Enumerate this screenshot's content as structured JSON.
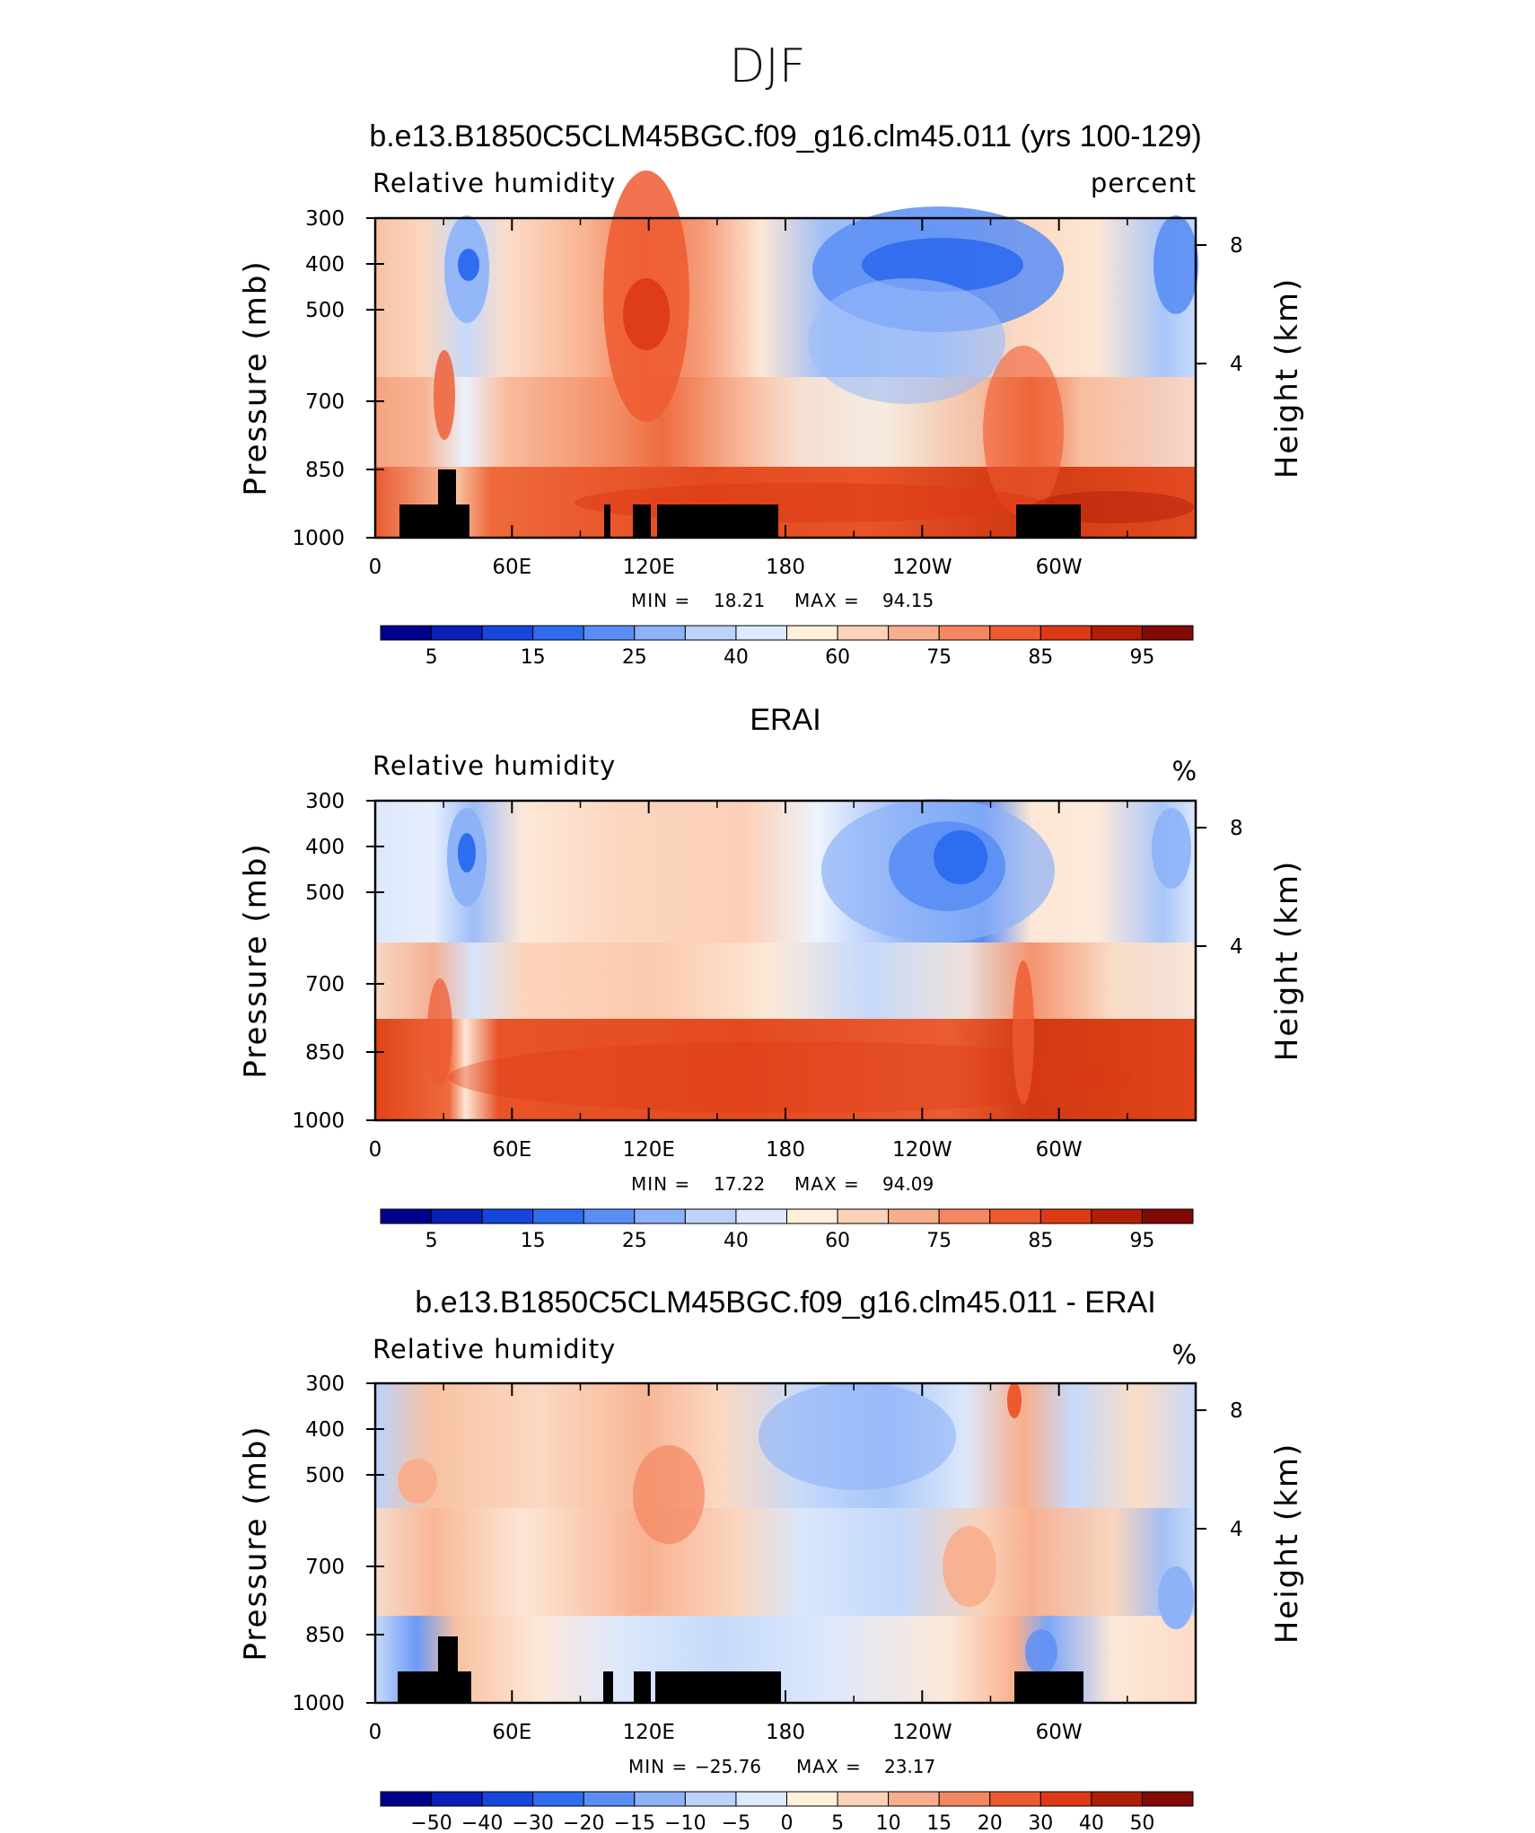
{
  "figure": {
    "title": "DJF"
  },
  "chart_data": [
    {
      "type": "heatmap",
      "title": "b.e13.B1850C5CLM45BGC.f09_g16.clm45.011 (yrs 100-129)",
      "variable": "Relative humidity",
      "units": "percent",
      "ylabel": "Pressure (mb)",
      "y2label": "Height (km)",
      "x_ticks": [
        "0",
        "60E",
        "120E",
        "180",
        "120W",
        "60W"
      ],
      "y_ticks": [
        "300",
        "400",
        "500",
        "700",
        "850",
        "1000"
      ],
      "y2_ticks": [
        "8",
        "4"
      ],
      "xlim": [
        0,
        360
      ],
      "ylim": [
        1000,
        300
      ],
      "min_label": "MIN =",
      "min_value": "18.21",
      "max_label": "MAX =",
      "max_value": "94.15",
      "colorbar_labels": [
        "5",
        "15",
        "25",
        "40",
        "60",
        "75",
        "85",
        "95"
      ],
      "colors": [
        "#00008c",
        "#0a1fb4",
        "#1646dc",
        "#2e6cf0",
        "#5a8ef5",
        "#8db2f8",
        "#bcd2fa",
        "#dde9fc",
        "#fff0dc",
        "#fcd2b8",
        "#f8ae8c",
        "#f48660",
        "#ee5a30",
        "#dc3a14",
        "#b01e08",
        "#820a04"
      ]
    },
    {
      "type": "heatmap",
      "title": "ERAI",
      "variable": "Relative humidity",
      "units": "%",
      "ylabel": "Pressure (mb)",
      "y2label": "Height (km)",
      "x_ticks": [
        "0",
        "60E",
        "120E",
        "180",
        "120W",
        "60W"
      ],
      "y_ticks": [
        "300",
        "400",
        "500",
        "700",
        "850",
        "1000"
      ],
      "y2_ticks": [
        "8",
        "4"
      ],
      "xlim": [
        0,
        360
      ],
      "ylim": [
        1000,
        300
      ],
      "min_label": "MIN =",
      "min_value": "17.22",
      "max_label": "MAX =",
      "max_value": "94.09",
      "colorbar_labels": [
        "5",
        "15",
        "25",
        "40",
        "60",
        "75",
        "85",
        "95"
      ],
      "colors": [
        "#00008c",
        "#0a1fb4",
        "#1646dc",
        "#2e6cf0",
        "#5a8ef5",
        "#8db2f8",
        "#bcd2fa",
        "#dde9fc",
        "#fff0dc",
        "#fcd2b8",
        "#f8ae8c",
        "#f48660",
        "#ee5a30",
        "#dc3a14",
        "#b01e08",
        "#820a04"
      ]
    },
    {
      "type": "heatmap",
      "title": "b.e13.B1850C5CLM45BGC.f09_g16.clm45.011 - ERAI",
      "variable": "Relative humidity",
      "units": "%",
      "ylabel": "Pressure (mb)",
      "y2label": "Height (km)",
      "x_ticks": [
        "0",
        "60E",
        "120E",
        "180",
        "120W",
        "60W"
      ],
      "y_ticks": [
        "300",
        "400",
        "500",
        "700",
        "850",
        "1000"
      ],
      "y2_ticks": [
        "8",
        "4"
      ],
      "xlim": [
        0,
        360
      ],
      "ylim": [
        1000,
        300
      ],
      "min_label": "MIN =",
      "min_value": "−25.76",
      "max_label": "MAX =",
      "max_value": "23.17",
      "colorbar_labels": [
        "−50",
        "−40",
        "−30",
        "−20",
        "−15",
        "−10",
        "−5",
        "0",
        "5",
        "10",
        "15",
        "20",
        "30",
        "40",
        "50"
      ],
      "colors": [
        "#00008c",
        "#0a1fb4",
        "#1646dc",
        "#2e6cf0",
        "#5a8ef5",
        "#8db2f8",
        "#bcd2fa",
        "#dde9fc",
        "#fff0dc",
        "#fcd2b8",
        "#f8ae8c",
        "#f48660",
        "#ee5a30",
        "#dc3a14",
        "#b01e08",
        "#820a04"
      ]
    }
  ]
}
